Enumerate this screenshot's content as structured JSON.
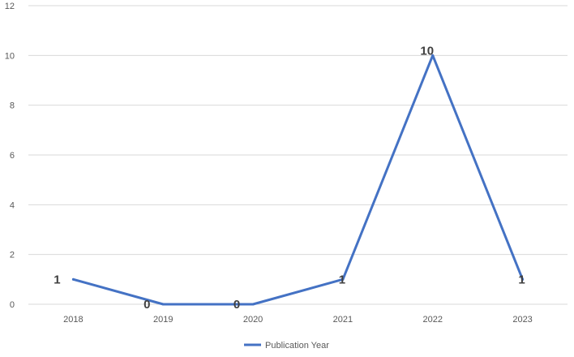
{
  "chart_data": {
    "type": "line",
    "categories": [
      "2018",
      "2019",
      "2020",
      "2021",
      "2022",
      "2023"
    ],
    "series": [
      {
        "name": "Publication Year",
        "values": [
          1,
          0,
          0,
          1,
          10,
          1
        ]
      }
    ],
    "y_ticks": [
      "0",
      "2",
      "4",
      "6",
      "8",
      "10",
      "12"
    ],
    "ylim": [
      0,
      12
    ],
    "data_labels": [
      "1",
      "0",
      "0",
      "1",
      "10",
      "1"
    ],
    "grid": true,
    "legend_position": "bottom",
    "colors": {
      "series": "#4472C4",
      "grid": "#D9D9D9",
      "text": "#595959",
      "label": "#404040"
    }
  }
}
